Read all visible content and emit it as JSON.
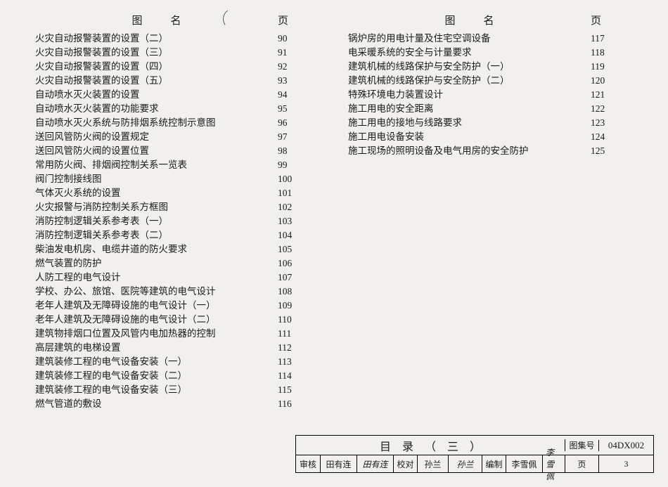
{
  "headers": {
    "name": "图名",
    "page": "页"
  },
  "left": [
    {
      "t": "火灾自动报警装置的设置（二）",
      "p": "90"
    },
    {
      "t": "火灾自动报警装置的设置（三）",
      "p": "91"
    },
    {
      "t": "火灾自动报警装置的设置（四）",
      "p": "92"
    },
    {
      "t": "火灾自动报警装置的设置（五）",
      "p": "93"
    },
    {
      "t": "自动喷水灭火装置的设置",
      "p": "94"
    },
    {
      "t": "自动喷水灭火装置的功能要求",
      "p": "95"
    },
    {
      "t": "自动喷水灭火系统与防排烟系统控制示意图",
      "p": "96"
    },
    {
      "t": "送回风管防火阀的设置规定",
      "p": "97"
    },
    {
      "t": "送回风管防火阀的设置位置",
      "p": "98"
    },
    {
      "t": "常用防火阀、排烟阀控制关系一览表",
      "p": "99"
    },
    {
      "t": "阀门控制接线图",
      "p": "100"
    },
    {
      "t": "气体灭火系统的设置",
      "p": "101"
    },
    {
      "t": "火灾报警与消防控制关系方框图",
      "p": "102"
    },
    {
      "t": "消防控制逻辑关系参考表（一）",
      "p": "103"
    },
    {
      "t": "消防控制逻辑关系参考表（二）",
      "p": "104"
    },
    {
      "t": "柴油发电机房、电缆井道的防火要求",
      "p": "105"
    },
    {
      "t": "燃气装置的防护",
      "p": "106"
    },
    {
      "t": "人防工程的电气设计",
      "p": "107"
    },
    {
      "t": "学校、办公、旅馆、医院等建筑的电气设计",
      "p": "108"
    },
    {
      "t": "老年人建筑及无障碍设施的电气设计（一）",
      "p": "109"
    },
    {
      "t": "老年人建筑及无障碍设施的电气设计（二）",
      "p": "110"
    },
    {
      "t": "建筑物排烟口位置及风管内电加热器的控制",
      "p": "111"
    },
    {
      "t": "高层建筑的电梯设置",
      "p": "112"
    },
    {
      "t": "建筑装修工程的电气设备安装（一）",
      "p": "113"
    },
    {
      "t": "建筑装修工程的电气设备安装（二）",
      "p": "114"
    },
    {
      "t": "建筑装修工程的电气设备安装（三）",
      "p": "115"
    },
    {
      "t": "燃气管道的敷设",
      "p": "116"
    }
  ],
  "right": [
    {
      "t": "锅炉房的用电计量及住宅空调设备",
      "p": "117"
    },
    {
      "t": "电采暖系统的安全与计量要求",
      "p": "118"
    },
    {
      "t": "建筑机械的线路保护与安全防护（一）",
      "p": "119"
    },
    {
      "t": "建筑机械的线路保护与安全防护（二）",
      "p": "120"
    },
    {
      "t": "特殊环境电力装置设计",
      "p": "121"
    },
    {
      "t": "施工用电的安全距离",
      "p": "122"
    },
    {
      "t": "施工用电的接地与线路要求",
      "p": "123"
    },
    {
      "t": "施工用电设备安装",
      "p": "124"
    },
    {
      "t": "施工现场的照明设备及电气用房的安全防护",
      "p": "125"
    }
  ],
  "footer": {
    "title": "目录（三）",
    "codeLabel": "图集号",
    "code": "04DX002",
    "review": "审核",
    "reviewer": "田有连",
    "reviewerSig": "田有连",
    "check": "校对",
    "checker": "孙兰",
    "checkerSig": "孙兰",
    "compile": "编制",
    "compiler": "李雪佩",
    "compilerSig": "李雪佩",
    "pageLabel": "页",
    "pageNum": "3"
  }
}
